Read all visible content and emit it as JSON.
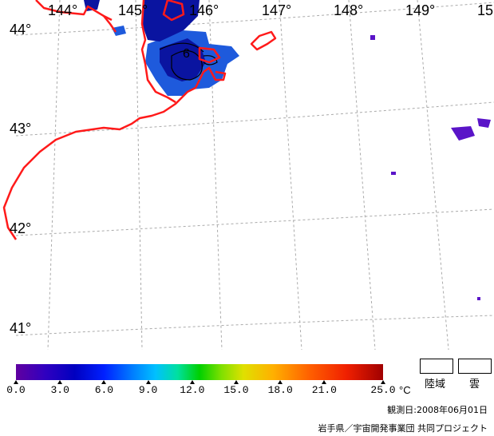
{
  "map": {
    "longitude_labels": [
      "144°",
      "145°",
      "146°",
      "147°",
      "148°",
      "149°",
      "15"
    ],
    "latitude_labels": [
      "44°",
      "43°",
      "42°",
      "41°"
    ],
    "colors": {
      "coastline": "#ff1a1a",
      "grid": "#aaaaaa",
      "sea_cold": "#1e5adc",
      "sea_dark": "#0a14a0",
      "patch": "#5a14c8"
    },
    "contour_label": "6"
  },
  "colorbar": {
    "ticks": [
      "0.0",
      "3.0",
      "6.0",
      "9.0",
      "12.0",
      "15.0",
      "18.0",
      "21.0",
      "25.0"
    ],
    "tick_values": [
      0,
      3,
      6,
      9,
      12,
      15,
      18,
      21,
      25
    ],
    "min": 0,
    "max": 25,
    "unit": "°C"
  },
  "legend": {
    "land": "陸域",
    "cloud": "雲"
  },
  "footer": {
    "observation_date": "観測日:2008年06月01日",
    "credit": "岩手県／宇宙開発事業団 共同プロジェクト"
  }
}
